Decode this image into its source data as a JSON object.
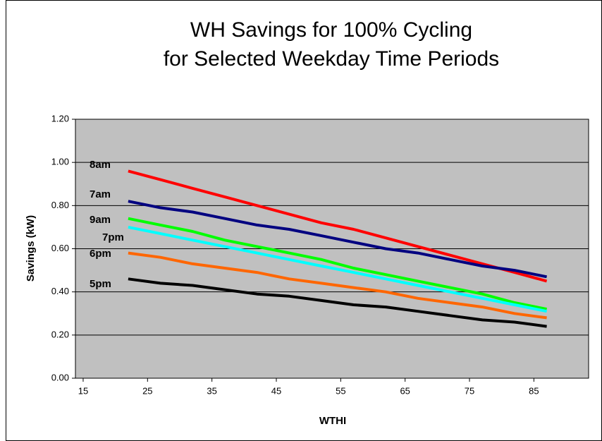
{
  "chart_data": {
    "type": "line",
    "title": [
      "WH Savings for 100% Cycling",
      "for Selected Weekday Time Periods"
    ],
    "x_label": "WTHI",
    "y_label": "Savings (kW)",
    "x": [
      22,
      27,
      32,
      37,
      42,
      47,
      52,
      57,
      62,
      67,
      72,
      77,
      82,
      87
    ],
    "series": [
      {
        "name": "8am",
        "color": "#ff0000",
        "values": [
          0.96,
          0.92,
          0.88,
          0.84,
          0.8,
          0.76,
          0.72,
          0.69,
          0.65,
          0.61,
          0.57,
          0.53,
          0.49,
          0.45
        ]
      },
      {
        "name": "7am",
        "color": "#000080",
        "values": [
          0.82,
          0.79,
          0.77,
          0.74,
          0.71,
          0.69,
          0.66,
          0.63,
          0.6,
          0.58,
          0.55,
          0.52,
          0.5,
          0.47
        ]
      },
      {
        "name": "9am",
        "color": "#00ff00",
        "values": [
          0.74,
          0.71,
          0.68,
          0.64,
          0.61,
          0.58,
          0.55,
          0.51,
          0.48,
          0.45,
          0.42,
          0.39,
          0.35,
          0.32
        ]
      },
      {
        "name": "7pm",
        "color": "#00ffff",
        "values": [
          0.7,
          0.67,
          0.64,
          0.61,
          0.58,
          0.55,
          0.52,
          0.49,
          0.46,
          0.43,
          0.4,
          0.37,
          0.34,
          0.31
        ]
      },
      {
        "name": "6pm",
        "color": "#ff6600",
        "values": [
          0.58,
          0.56,
          0.53,
          0.51,
          0.49,
          0.46,
          0.44,
          0.42,
          0.4,
          0.37,
          0.35,
          0.33,
          0.3,
          0.28
        ]
      },
      {
        "name": "5pm",
        "color": "#000000",
        "values": [
          0.46,
          0.44,
          0.43,
          0.41,
          0.39,
          0.38,
          0.36,
          0.34,
          0.33,
          0.31,
          0.29,
          0.27,
          0.26,
          0.24
        ]
      }
    ],
    "xlim": [
      13.8,
      93.5
    ],
    "xticks": [
      15,
      25,
      35,
      45,
      55,
      65,
      75,
      85
    ],
    "ylim": [
      0,
      1.2
    ],
    "yticks": [
      {
        "value": 0,
        "label": "0.00"
      },
      {
        "value": 0.2,
        "label": "0.20"
      },
      {
        "value": 0.4,
        "label": "0.40"
      },
      {
        "value": 0.6,
        "label": "0.60"
      },
      {
        "value": 0.8,
        "label": "0.80"
      },
      {
        "value": 1.0,
        "label": "1.00"
      },
      {
        "value": 1.2,
        "label": "1.20"
      }
    ],
    "grid": true,
    "plot_background": "#c0c0c0"
  }
}
